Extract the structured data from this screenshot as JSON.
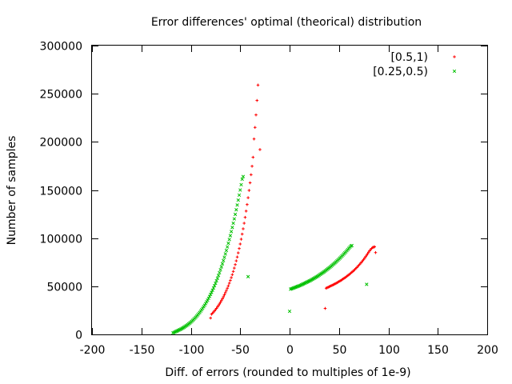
{
  "chart_data": {
    "type": "scatter",
    "title": "Error differences' optimal (theorical) distribution",
    "xlabel": "Diff. of errors (rounded to multiples of 1e-9)",
    "ylabel": "Number of samples",
    "xlim": [
      -200,
      200
    ],
    "ylim": [
      0,
      300000
    ],
    "x_ticks": [
      -200,
      -150,
      -100,
      -50,
      0,
      50,
      100,
      150,
      200
    ],
    "y_ticks": [
      0,
      50000,
      100000,
      150000,
      200000,
      250000,
      300000
    ],
    "grid": false,
    "legend_position": "top-right",
    "series": [
      {
        "name": "[0.5,1)",
        "color": "#ff0000",
        "marker": "plus",
        "points": [
          [
            -80,
            17000
          ],
          [
            -79,
            21000
          ],
          [
            -78,
            22000
          ],
          [
            -77,
            23200
          ],
          [
            -76,
            24400
          ],
          [
            -75,
            25700
          ],
          [
            -74,
            27000
          ],
          [
            -73,
            28500
          ],
          [
            -72,
            30000
          ],
          [
            -71,
            31600
          ],
          [
            -70,
            33300
          ],
          [
            -69,
            35100
          ],
          [
            -68,
            37000
          ],
          [
            -67,
            39000
          ],
          [
            -66,
            41100
          ],
          [
            -65,
            43300
          ],
          [
            -64,
            45600
          ],
          [
            -63,
            48000
          ],
          [
            -62,
            50500
          ],
          [
            -61,
            53200
          ],
          [
            -60,
            56000
          ],
          [
            -59,
            59000
          ],
          [
            -58,
            62100
          ],
          [
            -57,
            65400
          ],
          [
            -56,
            68900
          ],
          [
            -55,
            72500
          ],
          [
            -54,
            76400
          ],
          [
            -53,
            80400
          ],
          [
            -52,
            84700
          ],
          [
            -51,
            89200
          ],
          [
            -50,
            93900
          ],
          [
            -49,
            98900
          ],
          [
            -48,
            104200
          ],
          [
            -47,
            109700
          ],
          [
            -46,
            115500
          ],
          [
            -45,
            121600
          ],
          [
            -44,
            128100
          ],
          [
            -43,
            134900
          ],
          [
            -42,
            142000
          ],
          [
            -41,
            149600
          ],
          [
            -40,
            157500
          ],
          [
            -39,
            165900
          ],
          [
            -38,
            174700
          ],
          [
            -37,
            184000
          ],
          [
            -36,
            203000
          ],
          [
            -35,
            215000
          ],
          [
            -34,
            228000
          ],
          [
            -33,
            243000
          ],
          [
            -32,
            259000
          ],
          [
            -30,
            192000
          ],
          [
            36,
            27000
          ],
          [
            37,
            48000
          ],
          [
            38,
            48500
          ],
          [
            39,
            49000
          ],
          [
            40,
            49500
          ],
          [
            41,
            50000
          ],
          [
            42,
            50500
          ],
          [
            43,
            51000
          ],
          [
            44,
            51500
          ],
          [
            45,
            52000
          ],
          [
            46,
            52500
          ],
          [
            47,
            53100
          ],
          [
            48,
            53700
          ],
          [
            49,
            54300
          ],
          [
            50,
            54900
          ],
          [
            51,
            55500
          ],
          [
            52,
            56100
          ],
          [
            53,
            56800
          ],
          [
            54,
            57500
          ],
          [
            55,
            58200
          ],
          [
            56,
            58900
          ],
          [
            57,
            59600
          ],
          [
            58,
            60400
          ],
          [
            59,
            61200
          ],
          [
            60,
            62000
          ],
          [
            61,
            62800
          ],
          [
            62,
            63700
          ],
          [
            63,
            64600
          ],
          [
            64,
            65500
          ],
          [
            65,
            66400
          ],
          [
            66,
            67400
          ],
          [
            67,
            68400
          ],
          [
            68,
            69500
          ],
          [
            69,
            70600
          ],
          [
            70,
            71700
          ],
          [
            71,
            72900
          ],
          [
            72,
            74100
          ],
          [
            73,
            75300
          ],
          [
            74,
            76600
          ],
          [
            75,
            77900
          ],
          [
            76,
            79300
          ],
          [
            77,
            80800
          ],
          [
            78,
            82300
          ],
          [
            79,
            83800
          ],
          [
            80,
            85400
          ],
          [
            81,
            86900
          ],
          [
            82,
            88200
          ],
          [
            83,
            89300
          ],
          [
            84,
            90200
          ],
          [
            85,
            90700
          ],
          [
            86,
            91000
          ],
          [
            87,
            85000
          ]
        ]
      },
      {
        "name": "[0.25,0.5)",
        "color": "#00c000",
        "marker": "cross",
        "points": [
          [
            -118,
            1500
          ],
          [
            -117,
            2000
          ],
          [
            -116,
            2500
          ],
          [
            -115,
            3000
          ],
          [
            -114,
            3500
          ],
          [
            -113,
            4000
          ],
          [
            -112,
            4500
          ],
          [
            -111,
            5000
          ],
          [
            -110,
            5500
          ],
          [
            -109,
            6100
          ],
          [
            -108,
            6700
          ],
          [
            -107,
            7300
          ],
          [
            -106,
            8000
          ],
          [
            -105,
            8700
          ],
          [
            -104,
            9400
          ],
          [
            -103,
            10200
          ],
          [
            -102,
            11000
          ],
          [
            -101,
            11800
          ],
          [
            -100,
            12700
          ],
          [
            -99,
            13600
          ],
          [
            -98,
            14600
          ],
          [
            -97,
            15600
          ],
          [
            -96,
            16700
          ],
          [
            -95,
            17800
          ],
          [
            -94,
            19000
          ],
          [
            -93,
            20200
          ],
          [
            -92,
            21500
          ],
          [
            -91,
            22800
          ],
          [
            -90,
            24200
          ],
          [
            -89,
            25600
          ],
          [
            -88,
            27100
          ],
          [
            -87,
            28700
          ],
          [
            -86,
            30300
          ],
          [
            -85,
            32000
          ],
          [
            -84,
            33800
          ],
          [
            -83,
            35600
          ],
          [
            -82,
            37500
          ],
          [
            -81,
            39500
          ],
          [
            -80,
            41600
          ],
          [
            -79,
            43700
          ],
          [
            -78,
            45900
          ],
          [
            -77,
            48200
          ],
          [
            -76,
            50600
          ],
          [
            -75,
            53100
          ],
          [
            -74,
            55700
          ],
          [
            -73,
            58400
          ],
          [
            -72,
            61200
          ],
          [
            -71,
            64100
          ],
          [
            -70,
            67100
          ],
          [
            -69,
            70200
          ],
          [
            -68,
            73400
          ],
          [
            -67,
            76700
          ],
          [
            -66,
            80100
          ],
          [
            -65,
            83600
          ],
          [
            -64,
            87200
          ],
          [
            -63,
            90900
          ],
          [
            -62,
            94700
          ],
          [
            -61,
            98600
          ],
          [
            -60,
            102600
          ],
          [
            -59,
            106800
          ],
          [
            -58,
            111100
          ],
          [
            -57,
            115500
          ],
          [
            -56,
            120000
          ],
          [
            -55,
            124700
          ],
          [
            -54,
            129500
          ],
          [
            -53,
            134400
          ],
          [
            -52,
            139500
          ],
          [
            -51,
            144700
          ],
          [
            -50,
            150000
          ],
          [
            -49,
            155500
          ],
          [
            -48,
            161200
          ],
          [
            -47,
            164000
          ],
          [
            -42,
            60000
          ],
          [
            0,
            24000
          ],
          [
            1,
            47000
          ],
          [
            2,
            47400
          ],
          [
            3,
            47800
          ],
          [
            4,
            48200
          ],
          [
            5,
            48600
          ],
          [
            6,
            49000
          ],
          [
            7,
            49400
          ],
          [
            8,
            49800
          ],
          [
            9,
            50200
          ],
          [
            10,
            50600
          ],
          [
            11,
            51000
          ],
          [
            12,
            51500
          ],
          [
            13,
            52000
          ],
          [
            14,
            52500
          ],
          [
            15,
            53000
          ],
          [
            16,
            53500
          ],
          [
            17,
            54000
          ],
          [
            18,
            54500
          ],
          [
            19,
            55000
          ],
          [
            20,
            55500
          ],
          [
            21,
            56000
          ],
          [
            22,
            56600
          ],
          [
            23,
            57200
          ],
          [
            24,
            57800
          ],
          [
            25,
            58400
          ],
          [
            26,
            59000
          ],
          [
            27,
            59600
          ],
          [
            28,
            60200
          ],
          [
            29,
            60900
          ],
          [
            30,
            61600
          ],
          [
            31,
            62300
          ],
          [
            32,
            63000
          ],
          [
            33,
            63700
          ],
          [
            34,
            64400
          ],
          [
            35,
            65100
          ],
          [
            36,
            65900
          ],
          [
            37,
            66700
          ],
          [
            38,
            67500
          ],
          [
            39,
            68300
          ],
          [
            40,
            69100
          ],
          [
            41,
            69900
          ],
          [
            42,
            70800
          ],
          [
            43,
            71700
          ],
          [
            44,
            72600
          ],
          [
            45,
            73500
          ],
          [
            46,
            74400
          ],
          [
            47,
            75300
          ],
          [
            48,
            76300
          ],
          [
            49,
            77300
          ],
          [
            50,
            78300
          ],
          [
            51,
            79300
          ],
          [
            52,
            80300
          ],
          [
            53,
            81400
          ],
          [
            54,
            82500
          ],
          [
            55,
            83600
          ],
          [
            56,
            84700
          ],
          [
            57,
            85800
          ],
          [
            58,
            87000
          ],
          [
            59,
            88200
          ],
          [
            60,
            89400
          ],
          [
            61,
            90600
          ],
          [
            62,
            91800
          ],
          [
            63,
            92300
          ],
          [
            78,
            52000
          ]
        ]
      }
    ]
  }
}
